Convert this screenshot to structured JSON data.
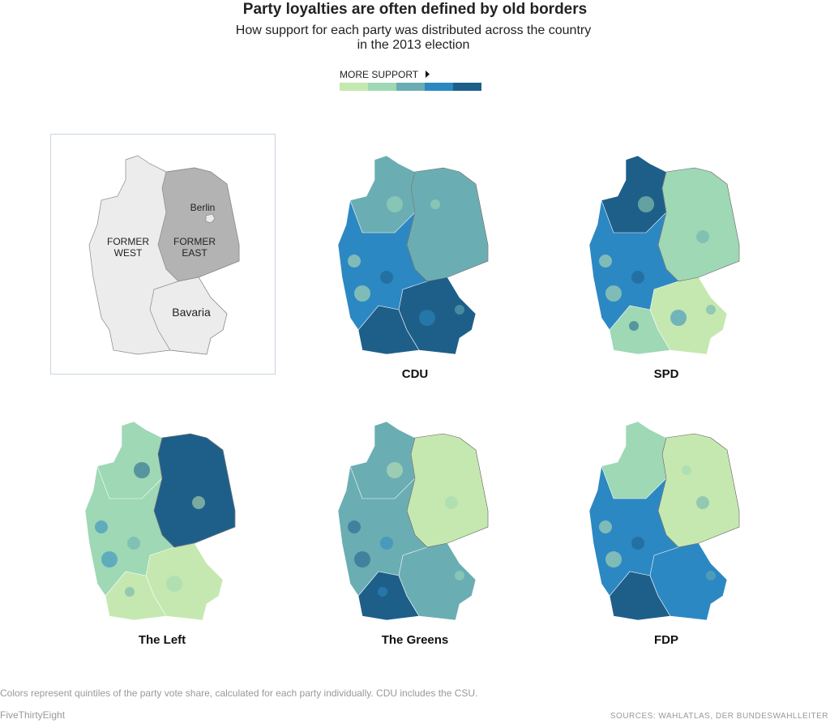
{
  "header": {
    "title": "Party loyalties are often defined by old borders",
    "subtitle": [
      "How support for each party was distributed across the country",
      "in the 2013 election"
    ]
  },
  "legend": {
    "label": "MORE SUPPORT",
    "colors": [
      "#c5e8b0",
      "#9ed8b5",
      "#6aaeb3",
      "#2c88c2",
      "#1e5f8a"
    ]
  },
  "inset": {
    "berlin": "Berlin",
    "former_west": [
      "FORMER",
      "WEST"
    ],
    "former_east": [
      "FORMER",
      "EAST"
    ],
    "bavaria": "Bavaria"
  },
  "maps": [
    {
      "name": "CDU"
    },
    {
      "name": "SPD"
    },
    {
      "name": "The Left"
    },
    {
      "name": "The Greens"
    },
    {
      "name": "FDP"
    }
  ],
  "footer": {
    "note": "Colors represent quintiles of the party vote share, calculated for each party individually. CDU includes the CSU.",
    "credit": "FiveThirtyEight",
    "sources": "SOURCES: WAHLATLAS, DER BUNDESWAHLLEITER"
  }
}
